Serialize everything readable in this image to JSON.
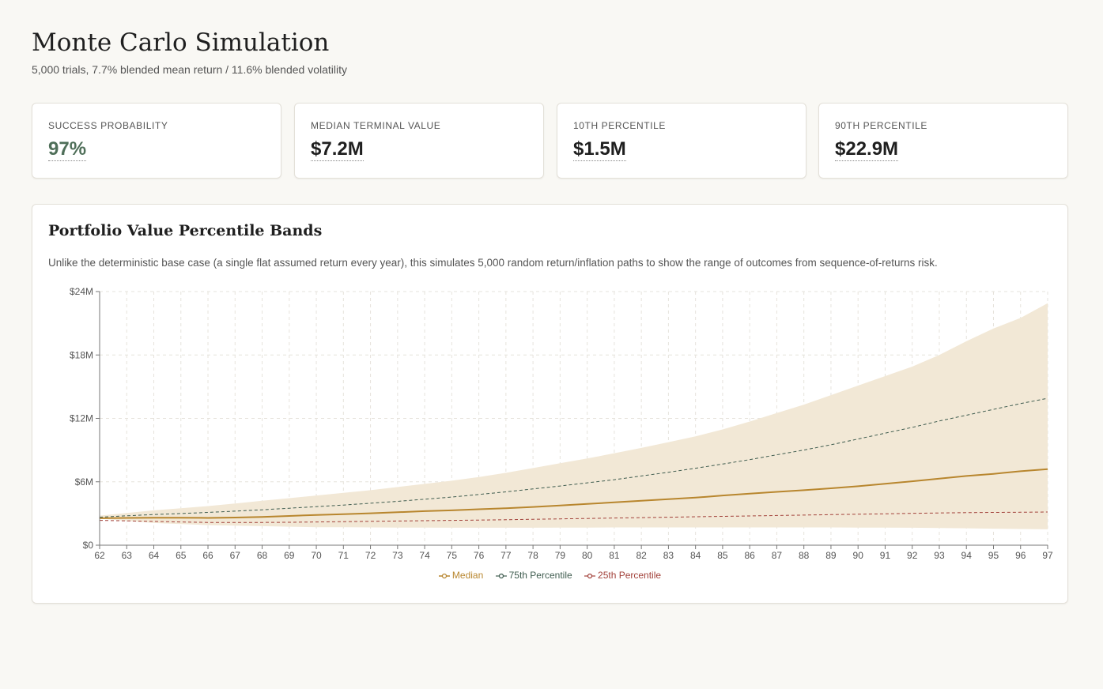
{
  "header": {
    "title": "Monte Carlo Simulation",
    "subtitle": "5,000 trials, 7.7% blended mean return / 11.6% blended volatility"
  },
  "cards": [
    {
      "label": "SUCCESS PROBABILITY",
      "value": "97%"
    },
    {
      "label": "MEDIAN TERMINAL VALUE",
      "value": "$7.2M"
    },
    {
      "label": "10TH PERCENTILE",
      "value": "$1.5M"
    },
    {
      "label": "90TH PERCENTILE",
      "value": "$22.9M"
    }
  ],
  "colors": {
    "success": "#4f6f59",
    "median": "#b8862e",
    "p75": "#3f5c4f",
    "p25": "#a2413a",
    "band": "#f2e8d6"
  },
  "chart_card": {
    "title": "Portfolio Value Percentile Bands",
    "description": "Unlike the deterministic base case (a single flat assumed return every year), this simulates 5,000 random return/inflation paths to show the range of outcomes from sequence-of-returns risk."
  },
  "chart_data": {
    "type": "area",
    "x": [
      62,
      63,
      64,
      65,
      66,
      67,
      68,
      69,
      70,
      71,
      72,
      73,
      74,
      75,
      76,
      77,
      78,
      79,
      80,
      81,
      82,
      83,
      84,
      85,
      86,
      87,
      88,
      89,
      90,
      91,
      92,
      93,
      94,
      95,
      96,
      97
    ],
    "ylim": [
      0,
      24
    ],
    "yticks": [
      0,
      6,
      12,
      18,
      24
    ],
    "ytick_labels": [
      "$0",
      "$6M",
      "$12M",
      "$18M",
      "$24M"
    ],
    "y_unit": "$M",
    "grid": true,
    "legend_position": "bottom",
    "band": {
      "lower": [
        2.5,
        2.3,
        2.1,
        2.0,
        1.9,
        1.85,
        1.8,
        1.75,
        1.7,
        1.7,
        1.68,
        1.67,
        1.66,
        1.65,
        1.65,
        1.65,
        1.65,
        1.66,
        1.67,
        1.68,
        1.68,
        1.68,
        1.68,
        1.68,
        1.68,
        1.68,
        1.68,
        1.68,
        1.67,
        1.66,
        1.65,
        1.63,
        1.6,
        1.56,
        1.53,
        1.5
      ],
      "upper": [
        2.8,
        3.05,
        3.3,
        3.5,
        3.7,
        3.95,
        4.2,
        4.45,
        4.7,
        4.95,
        5.2,
        5.5,
        5.8,
        6.1,
        6.45,
        6.85,
        7.3,
        7.75,
        8.2,
        8.7,
        9.2,
        9.75,
        10.3,
        10.95,
        11.7,
        12.5,
        13.3,
        14.2,
        15.1,
        16.0,
        16.9,
        18.0,
        19.3,
        20.5,
        21.5,
        22.9
      ]
    },
    "series": [
      {
        "name": "Median",
        "style": "solid",
        "values": [
          2.55,
          2.58,
          2.6,
          2.6,
          2.58,
          2.62,
          2.68,
          2.77,
          2.86,
          2.94,
          3.02,
          3.12,
          3.22,
          3.3,
          3.4,
          3.5,
          3.62,
          3.75,
          3.9,
          4.05,
          4.2,
          4.35,
          4.5,
          4.7,
          4.88,
          5.05,
          5.2,
          5.38,
          5.58,
          5.82,
          6.05,
          6.3,
          6.55,
          6.75,
          7.0,
          7.2
        ]
      },
      {
        "name": "75th Percentile",
        "style": "dashed",
        "values": [
          2.65,
          2.78,
          2.9,
          3.0,
          3.1,
          3.22,
          3.35,
          3.5,
          3.65,
          3.8,
          3.97,
          4.15,
          4.35,
          4.55,
          4.8,
          5.05,
          5.32,
          5.6,
          5.9,
          6.2,
          6.55,
          6.9,
          7.28,
          7.68,
          8.1,
          8.55,
          9.0,
          9.5,
          10.05,
          10.6,
          11.15,
          11.75,
          12.3,
          12.85,
          13.4,
          13.9
        ]
      },
      {
        "name": "25th Percentile",
        "style": "dashed",
        "values": [
          2.35,
          2.3,
          2.25,
          2.2,
          2.15,
          2.15,
          2.15,
          2.17,
          2.2,
          2.23,
          2.26,
          2.29,
          2.32,
          2.35,
          2.38,
          2.41,
          2.45,
          2.49,
          2.53,
          2.57,
          2.61,
          2.65,
          2.69,
          2.73,
          2.77,
          2.81,
          2.85,
          2.89,
          2.93,
          2.97,
          3.01,
          3.05,
          3.08,
          3.1,
          3.12,
          3.14
        ]
      }
    ]
  }
}
